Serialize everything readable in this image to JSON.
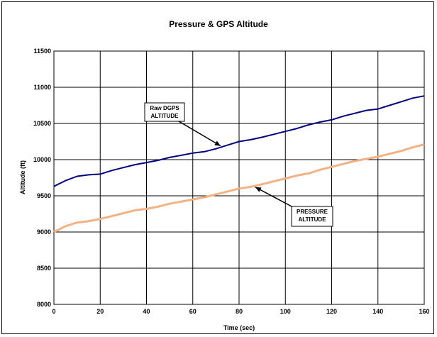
{
  "chart_data": {
    "type": "line",
    "title": "Pressure & GPS Altitude",
    "xlabel": "Time (sec)",
    "ylabel": "Altitude (ft)",
    "xlim": [
      0,
      160
    ],
    "ylim": [
      8000,
      11500
    ],
    "x_ticks": [
      0,
      20,
      40,
      60,
      80,
      100,
      120,
      140,
      160
    ],
    "y_ticks": [
      8000,
      8500,
      9000,
      9500,
      10000,
      10500,
      11000,
      11500
    ],
    "grid": true,
    "series": [
      {
        "color": "#00007f",
        "x": [
          0,
          5,
          10,
          15,
          20,
          25,
          30,
          35,
          40,
          45,
          50,
          55,
          60,
          65,
          70,
          75,
          80,
          85,
          90,
          95,
          100,
          105,
          110,
          115,
          120,
          125,
          130,
          135,
          140,
          145,
          150,
          155,
          160
        ],
        "y": [
          9630,
          9710,
          9770,
          9790,
          9800,
          9850,
          9890,
          9930,
          9960,
          9990,
          10030,
          10060,
          10090,
          10110,
          10150,
          10200,
          10250,
          10275,
          10310,
          10350,
          10390,
          10430,
          10480,
          10520,
          10550,
          10600,
          10640,
          10680,
          10700,
          10750,
          10800,
          10850,
          10880
        ]
      },
      {
        "color": "#f4b183",
        "x": [
          0,
          5,
          10,
          15,
          20,
          25,
          30,
          35,
          40,
          45,
          50,
          55,
          60,
          65,
          70,
          75,
          80,
          85,
          90,
          95,
          100,
          105,
          110,
          115,
          120,
          125,
          130,
          135,
          140,
          145,
          150,
          155,
          160
        ],
        "y": [
          9000,
          9080,
          9130,
          9150,
          9180,
          9220,
          9260,
          9300,
          9320,
          9350,
          9390,
          9420,
          9450,
          9480,
          9520,
          9560,
          9600,
          9625,
          9660,
          9700,
          9740,
          9780,
          9810,
          9860,
          9900,
          9940,
          9980,
          10010,
          10040,
          10080,
          10120,
          10170,
          10210
        ]
      }
    ],
    "annotations": [
      {
        "line1": "Raw DGPS",
        "line2": "ALTITUDE",
        "x": 72,
        "y": 10190
      },
      {
        "line1": "PRESSURE",
        "line2": "ALTITUDE",
        "x": 87,
        "y": 9620
      }
    ]
  }
}
